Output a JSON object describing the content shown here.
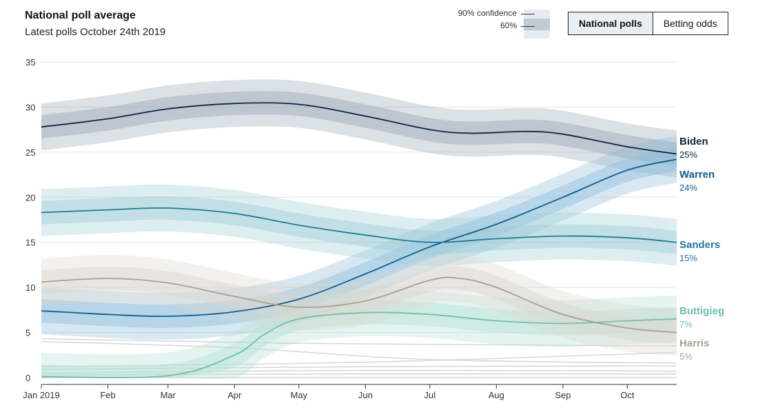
{
  "header": {
    "title": "National poll average",
    "subtitle": "Latest polls October 24th 2019"
  },
  "legend": {
    "ci90_label": "90% confidence",
    "ci60_label": "60%"
  },
  "toggle": {
    "national_polls": "National polls",
    "betting_odds": "Betting odds",
    "active": "national_polls"
  },
  "chart_data": {
    "type": "line",
    "title": "National poll average",
    "subtitle": "Latest polls October 24th 2019",
    "xlabel": "",
    "ylabel": "",
    "ylim": [
      0,
      35
    ],
    "yticks": [
      0,
      5,
      10,
      15,
      20,
      25,
      30,
      35
    ],
    "xrange": [
      "2019-01-01",
      "2019-10-24"
    ],
    "xticks": [
      {
        "date": "2019-01-01",
        "label": "Jan 2019"
      },
      {
        "date": "2019-02-01",
        "label": "Feb"
      },
      {
        "date": "2019-03-01",
        "label": "Mar"
      },
      {
        "date": "2019-04-01",
        "label": "Apr"
      },
      {
        "date": "2019-05-01",
        "label": "May"
      },
      {
        "date": "2019-06-01",
        "label": "Jun"
      },
      {
        "date": "2019-07-01",
        "label": "Jul"
      },
      {
        "date": "2019-08-01",
        "label": "Aug"
      },
      {
        "date": "2019-09-01",
        "label": "Sep"
      },
      {
        "date": "2019-10-01",
        "label": "Oct"
      }
    ],
    "grid": true,
    "confidence_bands": [
      "90%",
      "60%"
    ],
    "series": [
      {
        "name": "Biden",
        "end_label": "25%",
        "color": "#0b2545",
        "band_color": "#9aa8b6",
        "points": [
          [
            "2019-01-01",
            27.8
          ],
          [
            "2019-02-01",
            28.7
          ],
          [
            "2019-03-01",
            29.8
          ],
          [
            "2019-04-01",
            30.4
          ],
          [
            "2019-05-01",
            30.3
          ],
          [
            "2019-06-01",
            29.0
          ],
          [
            "2019-07-01",
            27.5
          ],
          [
            "2019-07-20",
            27.1
          ],
          [
            "2019-08-15",
            27.3
          ],
          [
            "2019-09-01",
            27.0
          ],
          [
            "2019-10-01",
            25.6
          ],
          [
            "2019-10-24",
            24.8
          ]
        ]
      },
      {
        "name": "Warren",
        "end_label": "24%",
        "color": "#115d8f",
        "band_color": "#8fbedb",
        "points": [
          [
            "2019-01-01",
            7.4
          ],
          [
            "2019-02-01",
            7.0
          ],
          [
            "2019-03-01",
            6.8
          ],
          [
            "2019-04-01",
            7.3
          ],
          [
            "2019-05-01",
            8.7
          ],
          [
            "2019-06-01",
            11.5
          ],
          [
            "2019-07-01",
            14.5
          ],
          [
            "2019-08-01",
            17.0
          ],
          [
            "2019-09-01",
            20.0
          ],
          [
            "2019-10-01",
            23.0
          ],
          [
            "2019-10-24",
            24.2
          ]
        ]
      },
      {
        "name": "Sanders",
        "end_label": "15%",
        "color": "#1f7a9a",
        "band_color": "#9fcdd7",
        "points": [
          [
            "2019-01-01",
            18.3
          ],
          [
            "2019-02-01",
            18.6
          ],
          [
            "2019-03-01",
            18.8
          ],
          [
            "2019-04-01",
            18.2
          ],
          [
            "2019-05-01",
            16.9
          ],
          [
            "2019-06-01",
            15.8
          ],
          [
            "2019-07-01",
            15.0
          ],
          [
            "2019-08-01",
            15.4
          ],
          [
            "2019-09-01",
            15.7
          ],
          [
            "2019-10-01",
            15.5
          ],
          [
            "2019-10-24",
            15.0
          ]
        ]
      },
      {
        "name": "Buttigieg",
        "end_label": "7%",
        "color": "#6fbfaf",
        "band_color": "#b3dfd4",
        "points": [
          [
            "2019-01-01",
            0.1
          ],
          [
            "2019-03-01",
            0.2
          ],
          [
            "2019-04-01",
            2.5
          ],
          [
            "2019-04-15",
            4.8
          ],
          [
            "2019-05-01",
            6.5
          ],
          [
            "2019-06-01",
            7.2
          ],
          [
            "2019-07-01",
            7.0
          ],
          [
            "2019-08-01",
            6.3
          ],
          [
            "2019-09-01",
            6.0
          ],
          [
            "2019-10-01",
            6.3
          ],
          [
            "2019-10-24",
            6.5
          ]
        ]
      },
      {
        "name": "Harris",
        "end_label": "5%",
        "color": "#a89f95",
        "band_color": "#dcd6cf",
        "points": [
          [
            "2019-01-01",
            10.6
          ],
          [
            "2019-02-01",
            11.0
          ],
          [
            "2019-03-01",
            10.5
          ],
          [
            "2019-04-01",
            9.0
          ],
          [
            "2019-05-01",
            7.8
          ],
          [
            "2019-06-01",
            8.5
          ],
          [
            "2019-07-01",
            10.8
          ],
          [
            "2019-07-15",
            11.0
          ],
          [
            "2019-08-01",
            10.0
          ],
          [
            "2019-09-01",
            7.0
          ],
          [
            "2019-10-01",
            5.5
          ],
          [
            "2019-10-24",
            5.0
          ]
        ]
      }
    ],
    "other_candidates_lines": [
      [
        [
          "2019-01-01",
          4.3
        ],
        [
          "2019-05-01",
          3.8
        ],
        [
          "2019-10-24",
          3.5
        ]
      ],
      [
        [
          "2019-01-01",
          4.0
        ],
        [
          "2019-04-01",
          3.3
        ],
        [
          "2019-07-01",
          2.0
        ],
        [
          "2019-10-24",
          1.6
        ]
      ],
      [
        [
          "2019-01-01",
          1.2
        ],
        [
          "2019-06-01",
          1.7
        ],
        [
          "2019-10-24",
          2.8
        ]
      ],
      [
        [
          "2019-01-01",
          0.9
        ],
        [
          "2019-06-01",
          1.2
        ],
        [
          "2019-10-24",
          1.3
        ]
      ],
      [
        [
          "2019-01-01",
          0.5
        ],
        [
          "2019-06-01",
          0.8
        ],
        [
          "2019-10-24",
          0.7
        ]
      ],
      [
        [
          "2019-01-01",
          0.3
        ],
        [
          "2019-06-01",
          0.4
        ],
        [
          "2019-10-24",
          0.4
        ]
      ]
    ]
  }
}
